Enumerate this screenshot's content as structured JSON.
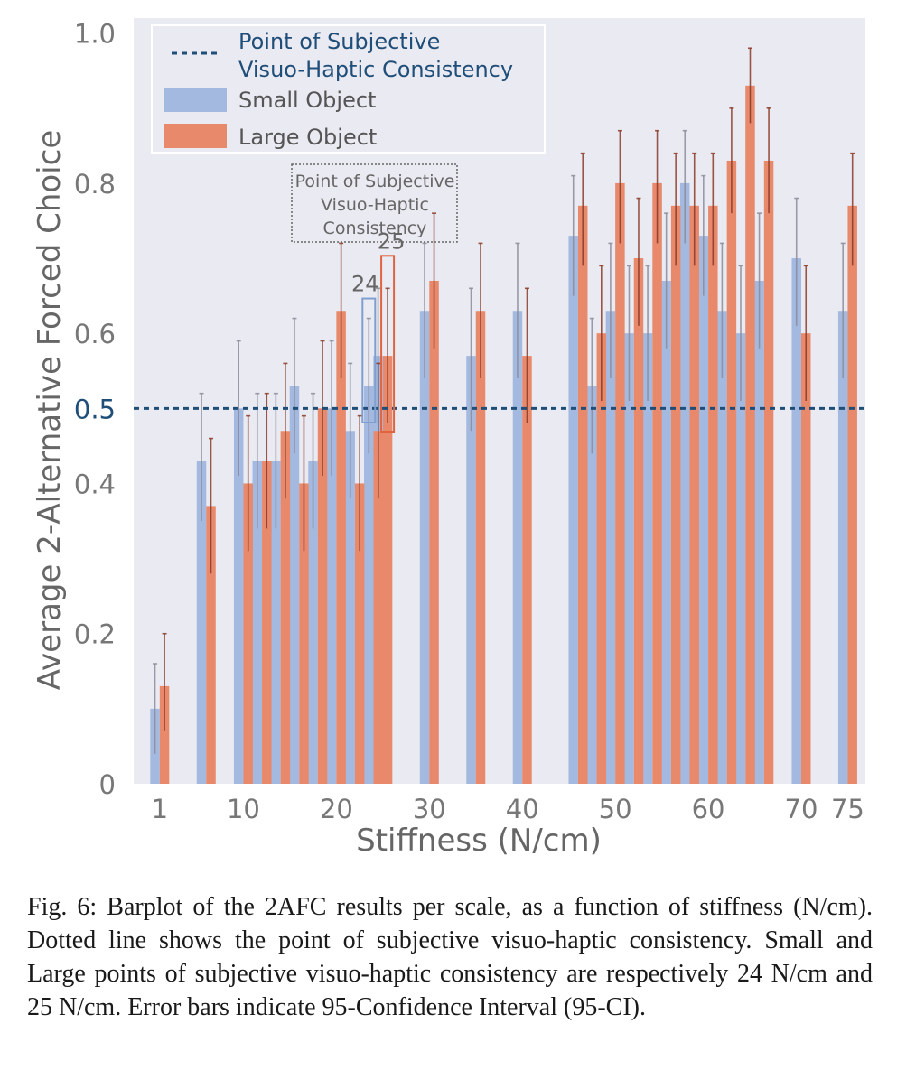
{
  "chart_data": {
    "type": "bar",
    "xlabel": "Stiffness (N/cm)",
    "ylabel": "Average 2-Alternative Forced Choice",
    "ylim": [
      0,
      1.02
    ],
    "grid": false,
    "legend_position": "top-left",
    "x_ticks": [
      {
        "value": 1,
        "label": "1"
      },
      {
        "value": 10,
        "label": "10"
      },
      {
        "value": 20,
        "label": "20"
      },
      {
        "value": 30,
        "label": "30"
      },
      {
        "value": 40,
        "label": "40"
      },
      {
        "value": 50,
        "label": "50"
      },
      {
        "value": 60,
        "label": "60"
      },
      {
        "value": 70,
        "label": "70"
      },
      {
        "value": 75,
        "label": "75"
      }
    ],
    "y_ticks": [
      {
        "value": 0,
        "label": "0"
      },
      {
        "value": 0.2,
        "label": "0.2"
      },
      {
        "value": 0.4,
        "label": "0.4"
      },
      {
        "value": 0.5,
        "label": "0.5",
        "highlight": true
      },
      {
        "value": 0.6,
        "label": "0.6"
      },
      {
        "value": 0.8,
        "label": "0.8"
      },
      {
        "value": 1.0,
        "label": "1.0"
      }
    ],
    "x": [
      1,
      6,
      10,
      12,
      14,
      16,
      18,
      20,
      22,
      24,
      25,
      30,
      35,
      40,
      46,
      48,
      50,
      52,
      54,
      56,
      58,
      60,
      62,
      64,
      66,
      70,
      75
    ],
    "series": [
      {
        "name": "Small Object",
        "color": "#a4b9df",
        "values": [
          0.1,
          0.43,
          0.5,
          0.43,
          0.43,
          0.53,
          0.43,
          0.5,
          0.47,
          0.53,
          0.57,
          0.63,
          0.57,
          0.63,
          0.73,
          0.53,
          0.63,
          0.6,
          0.6,
          0.67,
          0.8,
          0.73,
          0.63,
          0.6,
          0.67,
          0.7,
          0.63
        ],
        "ci_low": [
          0.04,
          0.35,
          0.41,
          0.34,
          0.34,
          0.44,
          0.34,
          0.41,
          0.38,
          0.44,
          0.48,
          0.54,
          0.47,
          0.54,
          0.65,
          0.44,
          0.54,
          0.51,
          0.51,
          0.58,
          0.72,
          0.65,
          0.54,
          0.51,
          0.58,
          0.61,
          0.54
        ],
        "ci_high": [
          0.16,
          0.52,
          0.59,
          0.52,
          0.52,
          0.62,
          0.52,
          0.59,
          0.56,
          0.62,
          0.66,
          0.72,
          0.66,
          0.72,
          0.81,
          0.62,
          0.72,
          0.69,
          0.69,
          0.76,
          0.87,
          0.81,
          0.72,
          0.69,
          0.76,
          0.78,
          0.72
        ]
      },
      {
        "name": "Large Object",
        "color": "#e8896b",
        "values": [
          0.13,
          0.37,
          0.4,
          0.43,
          0.47,
          0.4,
          0.5,
          0.63,
          0.4,
          0.47,
          0.57,
          0.67,
          0.63,
          0.57,
          0.77,
          0.6,
          0.8,
          0.7,
          0.8,
          0.77,
          0.77,
          0.77,
          0.83,
          0.93,
          0.83,
          0.6,
          0.77
        ],
        "ci_low": [
          0.07,
          0.28,
          0.31,
          0.34,
          0.38,
          0.31,
          0.41,
          0.54,
          0.31,
          0.38,
          0.48,
          0.58,
          0.54,
          0.48,
          0.69,
          0.51,
          0.72,
          0.61,
          0.72,
          0.69,
          0.69,
          0.69,
          0.76,
          0.88,
          0.76,
          0.51,
          0.69
        ],
        "ci_high": [
          0.2,
          0.46,
          0.49,
          0.52,
          0.56,
          0.49,
          0.59,
          0.72,
          0.49,
          0.56,
          0.66,
          0.76,
          0.72,
          0.66,
          0.84,
          0.69,
          0.87,
          0.78,
          0.87,
          0.84,
          0.84,
          0.84,
          0.9,
          0.98,
          0.9,
          0.69,
          0.84
        ]
      }
    ],
    "reference_line": {
      "y": 0.5,
      "label": "Point of Subjective Visuo-Haptic Consistency",
      "color": "#1f4e79"
    },
    "legend": {
      "line_label_1": "Point of Subjective",
      "line_label_2": "Visuo-Haptic Consistency",
      "small_label": "Small Object",
      "large_label": "Large Object"
    },
    "annotation": {
      "line1": "Point of Subjective",
      "line2": "Visuo-Haptic",
      "line3": "Consistency",
      "small_marker": "24",
      "large_marker": "25",
      "small_x": 24,
      "large_x": 25
    }
  },
  "caption": "Fig. 6: Barplot of the 2AFC results per scale, as a function of stiffness (N/cm). Dotted line shows the point of subjective visuo-haptic consistency. Small and Large points of subjective visuo-haptic consistency are respectively 24 N/cm and 25 N/cm. Error bars indicate 95-Confidence Interval (95-CI)."
}
